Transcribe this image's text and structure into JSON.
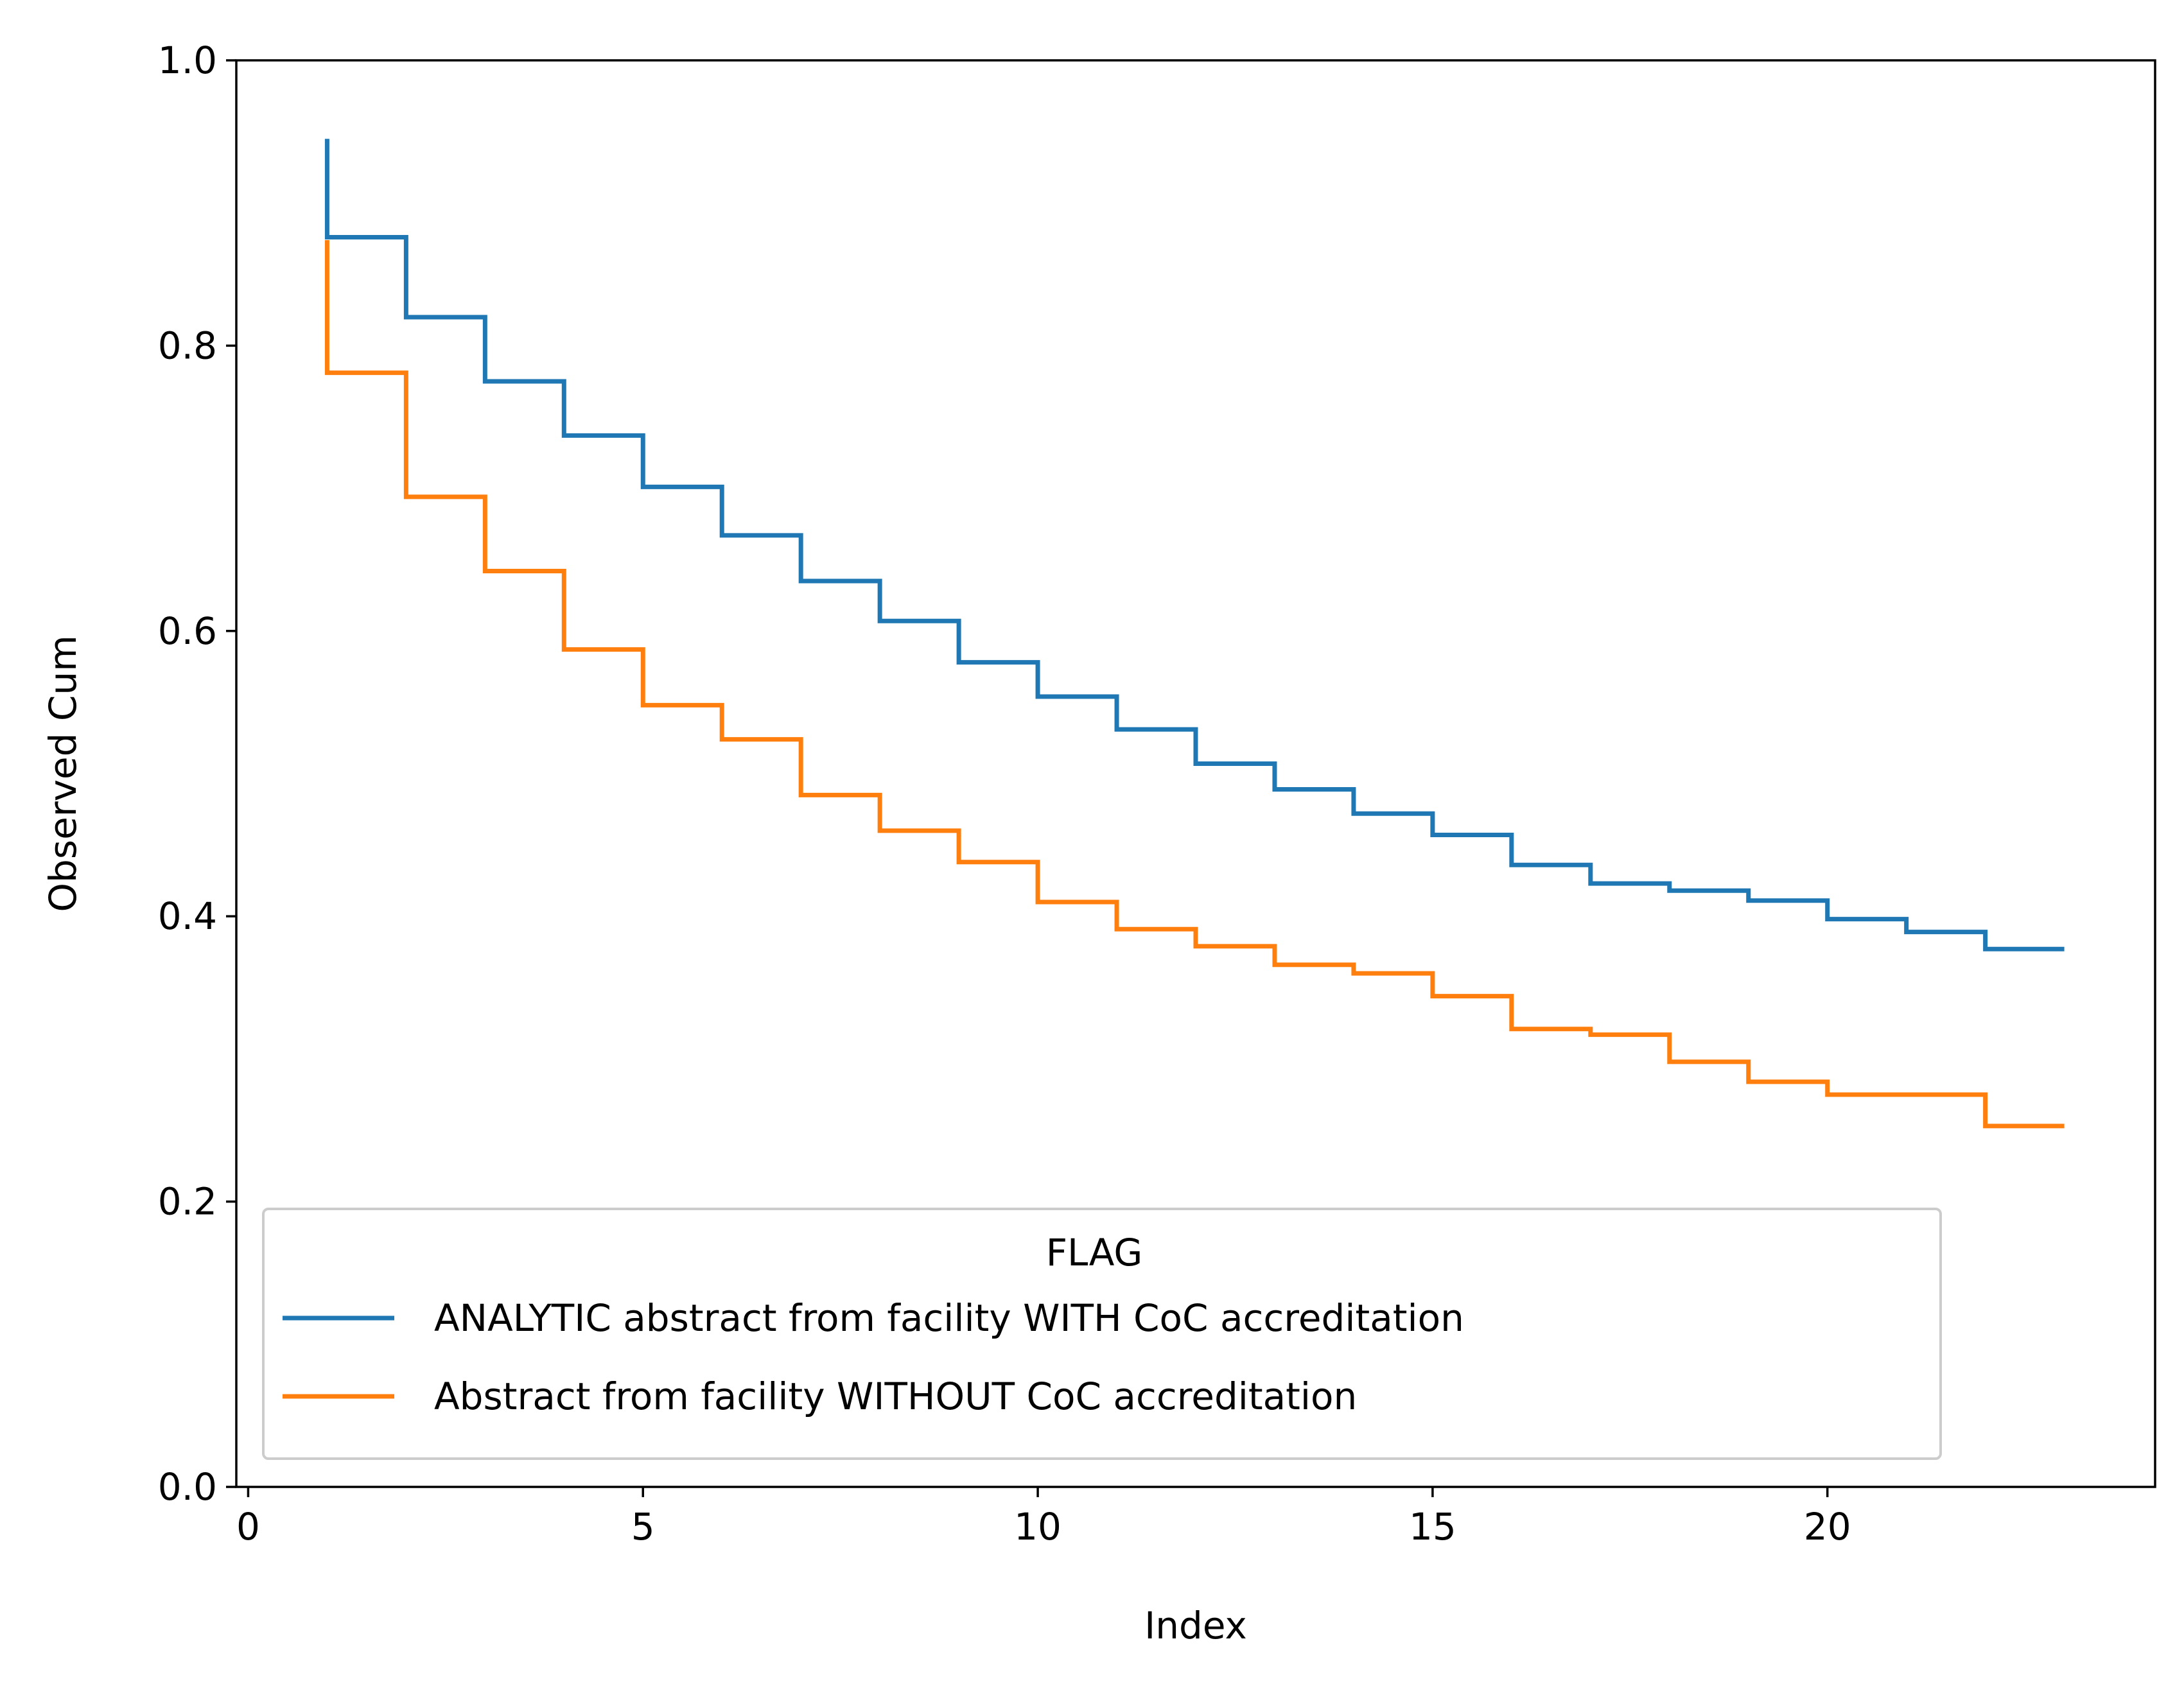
{
  "chart_data": {
    "type": "line",
    "step": true,
    "xlabel": "Index",
    "ylabel": "Observed Cum",
    "xlim": [
      -0.15,
      24.15
    ],
    "ylim": [
      0.0,
      1.0
    ],
    "xticks": [
      0,
      5,
      10,
      15,
      20
    ],
    "yticks": [
      0.0,
      0.2,
      0.4,
      0.6,
      0.8,
      1.0
    ],
    "ytick_labels": [
      "0.0",
      "0.2",
      "0.4",
      "0.6",
      "0.8",
      "1.0"
    ],
    "grid": false,
    "legend": {
      "title": "FLAG",
      "placement": "lower-left"
    },
    "x": [
      1,
      2,
      3,
      4,
      5,
      6,
      7,
      8,
      9,
      10,
      11,
      12,
      13,
      14,
      15,
      16,
      17,
      18,
      19,
      20,
      21,
      22,
      23
    ],
    "series": [
      {
        "name": "ANALYTIC abstract from facility WITH CoC accreditation",
        "color": "#1f77b4",
        "start": 0.945,
        "values": [
          0.876,
          0.82,
          0.775,
          0.737,
          0.701,
          0.667,
          0.635,
          0.607,
          0.578,
          0.554,
          0.531,
          0.507,
          0.489,
          0.472,
          0.457,
          0.436,
          0.423,
          0.418,
          0.411,
          0.398,
          0.389,
          0.377,
          0.377
        ]
      },
      {
        "name": "Abstract from facility WITHOUT CoC accreditation",
        "color": "#ff7f0e",
        "start": 0.874,
        "values": [
          0.781,
          0.694,
          0.642,
          0.587,
          0.548,
          0.524,
          0.485,
          0.46,
          0.438,
          0.41,
          0.391,
          0.379,
          0.366,
          0.36,
          0.344,
          0.321,
          0.317,
          0.298,
          0.284,
          0.275,
          0.275,
          0.253,
          0.253
        ]
      }
    ]
  }
}
